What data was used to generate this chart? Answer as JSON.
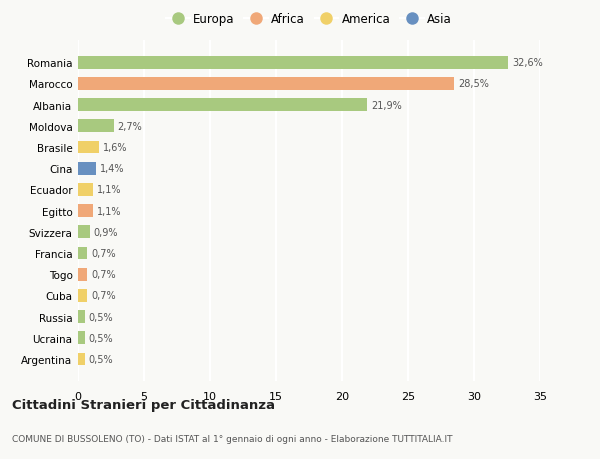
{
  "countries": [
    "Romania",
    "Marocco",
    "Albania",
    "Moldova",
    "Brasile",
    "Cina",
    "Ecuador",
    "Egitto",
    "Svizzera",
    "Francia",
    "Togo",
    "Cuba",
    "Russia",
    "Ucraina",
    "Argentina"
  ],
  "values": [
    32.6,
    28.5,
    21.9,
    2.7,
    1.6,
    1.4,
    1.1,
    1.1,
    0.9,
    0.7,
    0.7,
    0.7,
    0.5,
    0.5,
    0.5
  ],
  "labels": [
    "32,6%",
    "28,5%",
    "21,9%",
    "2,7%",
    "1,6%",
    "1,4%",
    "1,1%",
    "1,1%",
    "0,9%",
    "0,7%",
    "0,7%",
    "0,7%",
    "0,5%",
    "0,5%",
    "0,5%"
  ],
  "continents": [
    "Europa",
    "Africa",
    "Europa",
    "Europa",
    "America",
    "Asia",
    "America",
    "Africa",
    "Europa",
    "Europa",
    "Africa",
    "America",
    "Europa",
    "Europa",
    "America"
  ],
  "colors": {
    "Europa": "#a8c97f",
    "Africa": "#f0a878",
    "America": "#f0d068",
    "Asia": "#6890c0"
  },
  "bg_color": "#f9f9f6",
  "grid_color": "#ffffff",
  "title": "Cittadini Stranieri per Cittadinanza",
  "subtitle": "COMUNE DI BUSSOLENO (TO) - Dati ISTAT al 1° gennaio di ogni anno - Elaborazione TUTTITALIA.IT",
  "xlim": [
    0,
    35
  ],
  "xticks": [
    0,
    5,
    10,
    15,
    20,
    25,
    30,
    35
  ],
  "legend_order": [
    "Europa",
    "Africa",
    "America",
    "Asia"
  ]
}
